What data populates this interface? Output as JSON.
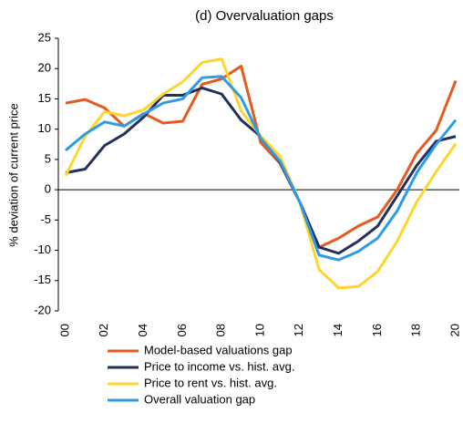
{
  "chart_data": {
    "type": "line",
    "title": "(d) Overvaluation gaps",
    "y_label": "% deviation of current price",
    "categories": [
      "00",
      "01",
      "02",
      "03",
      "04",
      "05",
      "06",
      "07",
      "08",
      "09",
      "10",
      "11",
      "12",
      "13",
      "14",
      "15",
      "16",
      "17",
      "18",
      "19",
      "20"
    ],
    "x_tick_labels": [
      "00",
      null,
      "02",
      null,
      "04",
      null,
      "06",
      null,
      "08",
      null,
      "10",
      null,
      "12",
      null,
      "14",
      null,
      "16",
      null,
      "18",
      null,
      "20"
    ],
    "ylim": [
      -20,
      25
    ],
    "yticks": [
      -20,
      -15,
      -10,
      -5,
      0,
      5,
      10,
      15,
      20,
      25
    ],
    "grid": false,
    "series": [
      {
        "name": "Model-based valuations gap",
        "color": "#e35b1e",
        "values": [
          14.3,
          14.9,
          13.5,
          10.5,
          12.6,
          11,
          11.3,
          17.4,
          18.3,
          20.4,
          7.8,
          4.3,
          -2,
          -9.5,
          -8,
          -6,
          -4.5,
          0,
          6,
          9.8,
          18
        ]
      },
      {
        "name": "Price to income vs. hist. avg.",
        "color": "#23305e",
        "values": [
          2.8,
          3.4,
          7.3,
          9.2,
          12,
          15.6,
          15.6,
          16.8,
          15.8,
          11.5,
          8.8,
          4.5,
          -2,
          -9.5,
          -10.5,
          -8.5,
          -6,
          -1,
          4,
          8,
          8.8
        ]
      },
      {
        "name": "Price to rent vs. hist. avg.",
        "color": "#ffd52d",
        "values": [
          2.3,
          8.8,
          12.9,
          12.2,
          13.2,
          15.8,
          17.8,
          21,
          21.6,
          13,
          8.9,
          5.5,
          -2,
          -13.2,
          -16.2,
          -16,
          -13.5,
          -8.5,
          -2,
          3,
          7.6
        ]
      },
      {
        "name": "Overall valuation gap",
        "color": "#2f9ae5",
        "values": [
          6.5,
          9.2,
          11.2,
          10.5,
          12.5,
          14.3,
          15,
          18.5,
          18.7,
          15.2,
          8.5,
          4.7,
          -2,
          -10.8,
          -11.6,
          -10.2,
          -8,
          -3.5,
          2.8,
          7.5,
          11.5
        ]
      }
    ],
    "legend": "bottom"
  }
}
